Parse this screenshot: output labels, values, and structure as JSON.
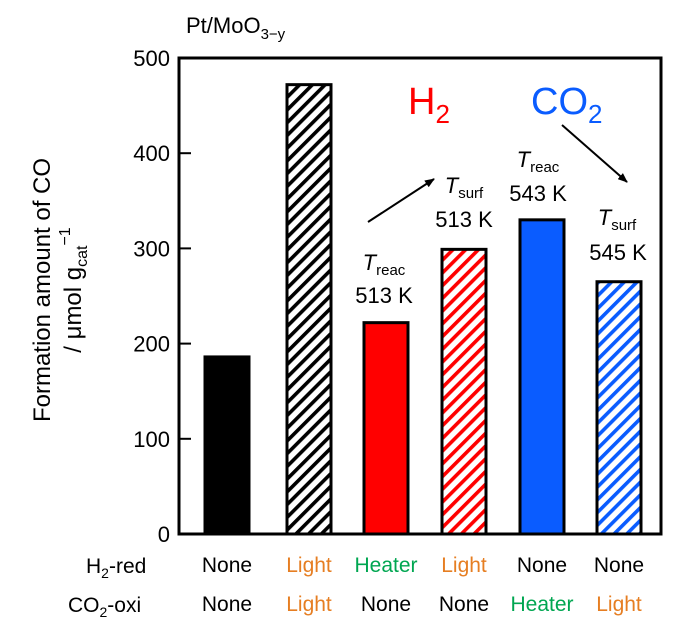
{
  "chart_data": {
    "type": "bar",
    "title": "Pt/MoO",
    "title_sub": "3−y",
    "ylabel_line1": "Formation amount of CO",
    "ylabel_line2_pre": "/ μmol g",
    "ylabel_line2_sub": "cat",
    "ylabel_line2_sup": "−1",
    "ylim": [
      0,
      500
    ],
    "yticks": [
      "0",
      "100",
      "200",
      "300",
      "400",
      "500"
    ],
    "values": [
      186,
      472,
      222,
      299,
      330,
      265
    ],
    "bar_fills": [
      "solid",
      "hatch",
      "solid",
      "hatch",
      "solid",
      "hatch"
    ],
    "bar_colors": [
      "#000000",
      "#000000",
      "#ff0000",
      "#ff0000",
      "#0a5cff",
      "#0a5cff"
    ],
    "row_labels": {
      "h2_pre": "H",
      "h2_sub": "2",
      "h2_post": "-red",
      "co2_pre": "CO",
      "co2_sub": "2",
      "co2_post": "-oxi"
    },
    "h2_red": [
      "None",
      "Light",
      "Heater",
      "Light",
      "None",
      "None"
    ],
    "co2_oxi": [
      "None",
      "Light",
      "None",
      "None",
      "Heater",
      "Light"
    ],
    "condition_colors": {
      "None": "#000000",
      "Light": "#e67e22",
      "Heater": "#00a651"
    },
    "annotations": [
      {
        "symbol": "T",
        "sub": "reac",
        "value": "513 K",
        "bar": 2
      },
      {
        "symbol": "T",
        "sub": "surf",
        "value": "513 K",
        "bar": 3
      },
      {
        "symbol": "T",
        "sub": "reac",
        "value": "543 K",
        "bar": 4
      },
      {
        "symbol": "T",
        "sub": "surf",
        "value": "545 K",
        "bar": 5
      }
    ],
    "group_labels": [
      {
        "pre": "H",
        "sub": "2",
        "color": "#ff0000"
      },
      {
        "pre": "CO",
        "sub": "2",
        "color": "#0a5cff"
      }
    ]
  }
}
